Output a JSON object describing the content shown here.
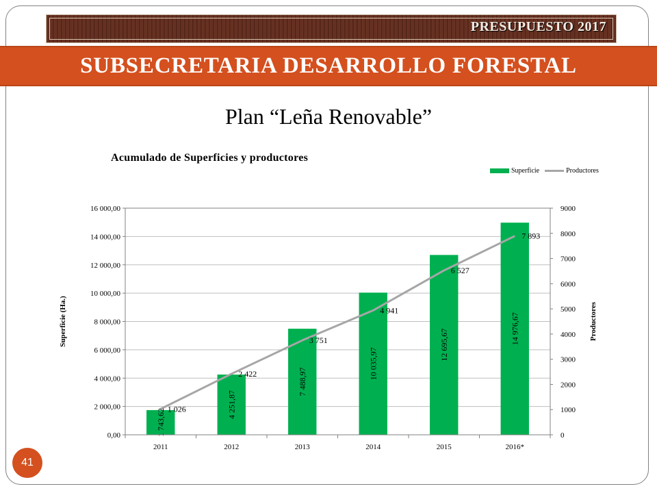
{
  "header": {
    "budget_label": "PRESUPUESTO 2017",
    "banner_title": "SUBSECRETARIA DESARROLLO FORESTAL"
  },
  "slide": {
    "title": "Plan “Leña Renovable”",
    "page_number": "41"
  },
  "colors": {
    "banner": "#d4501f",
    "bar": "#00b050",
    "line": "#a6a6a6"
  },
  "chart_data": {
    "type": "bar",
    "title": "Acumulado de Superficies y productores",
    "categories": [
      "2011",
      "2012",
      "2013",
      "2014",
      "2015",
      "2016*"
    ],
    "ylabel": "Superficie  (Ha.)",
    "y2label": "Productores",
    "ylim": [
      0,
      16000
    ],
    "y2lim": [
      0,
      9000
    ],
    "y_ticks": [
      "0,00",
      "2 000,00",
      "4 000,00",
      "6 000,00",
      "8 000,00",
      "10 000,00",
      "12 000,00",
      "14 000,00",
      "16 000,00"
    ],
    "y2_ticks": [
      "0",
      "1000",
      "2000",
      "3000",
      "4000",
      "5000",
      "6000",
      "7000",
      "8000",
      "9000"
    ],
    "legend_position": "top-right",
    "series": [
      {
        "name": "Superficie",
        "type": "bar",
        "axis": "left",
        "values": [
          1743.62,
          4251.87,
          7488.97,
          10035.97,
          12695.67,
          14976.67
        ],
        "labels": [
          "1 743,62",
          "4 251,87",
          "7 488,97",
          "10 035,97",
          "12 695,67",
          "14 976,67"
        ]
      },
      {
        "name": "Productores",
        "type": "line",
        "axis": "right",
        "values": [
          1026,
          2422,
          3751,
          4941,
          6527,
          7893
        ],
        "labels": [
          "1 026",
          "2 422",
          "3 751",
          "4 941",
          "6 527",
          "7 893"
        ]
      }
    ]
  }
}
